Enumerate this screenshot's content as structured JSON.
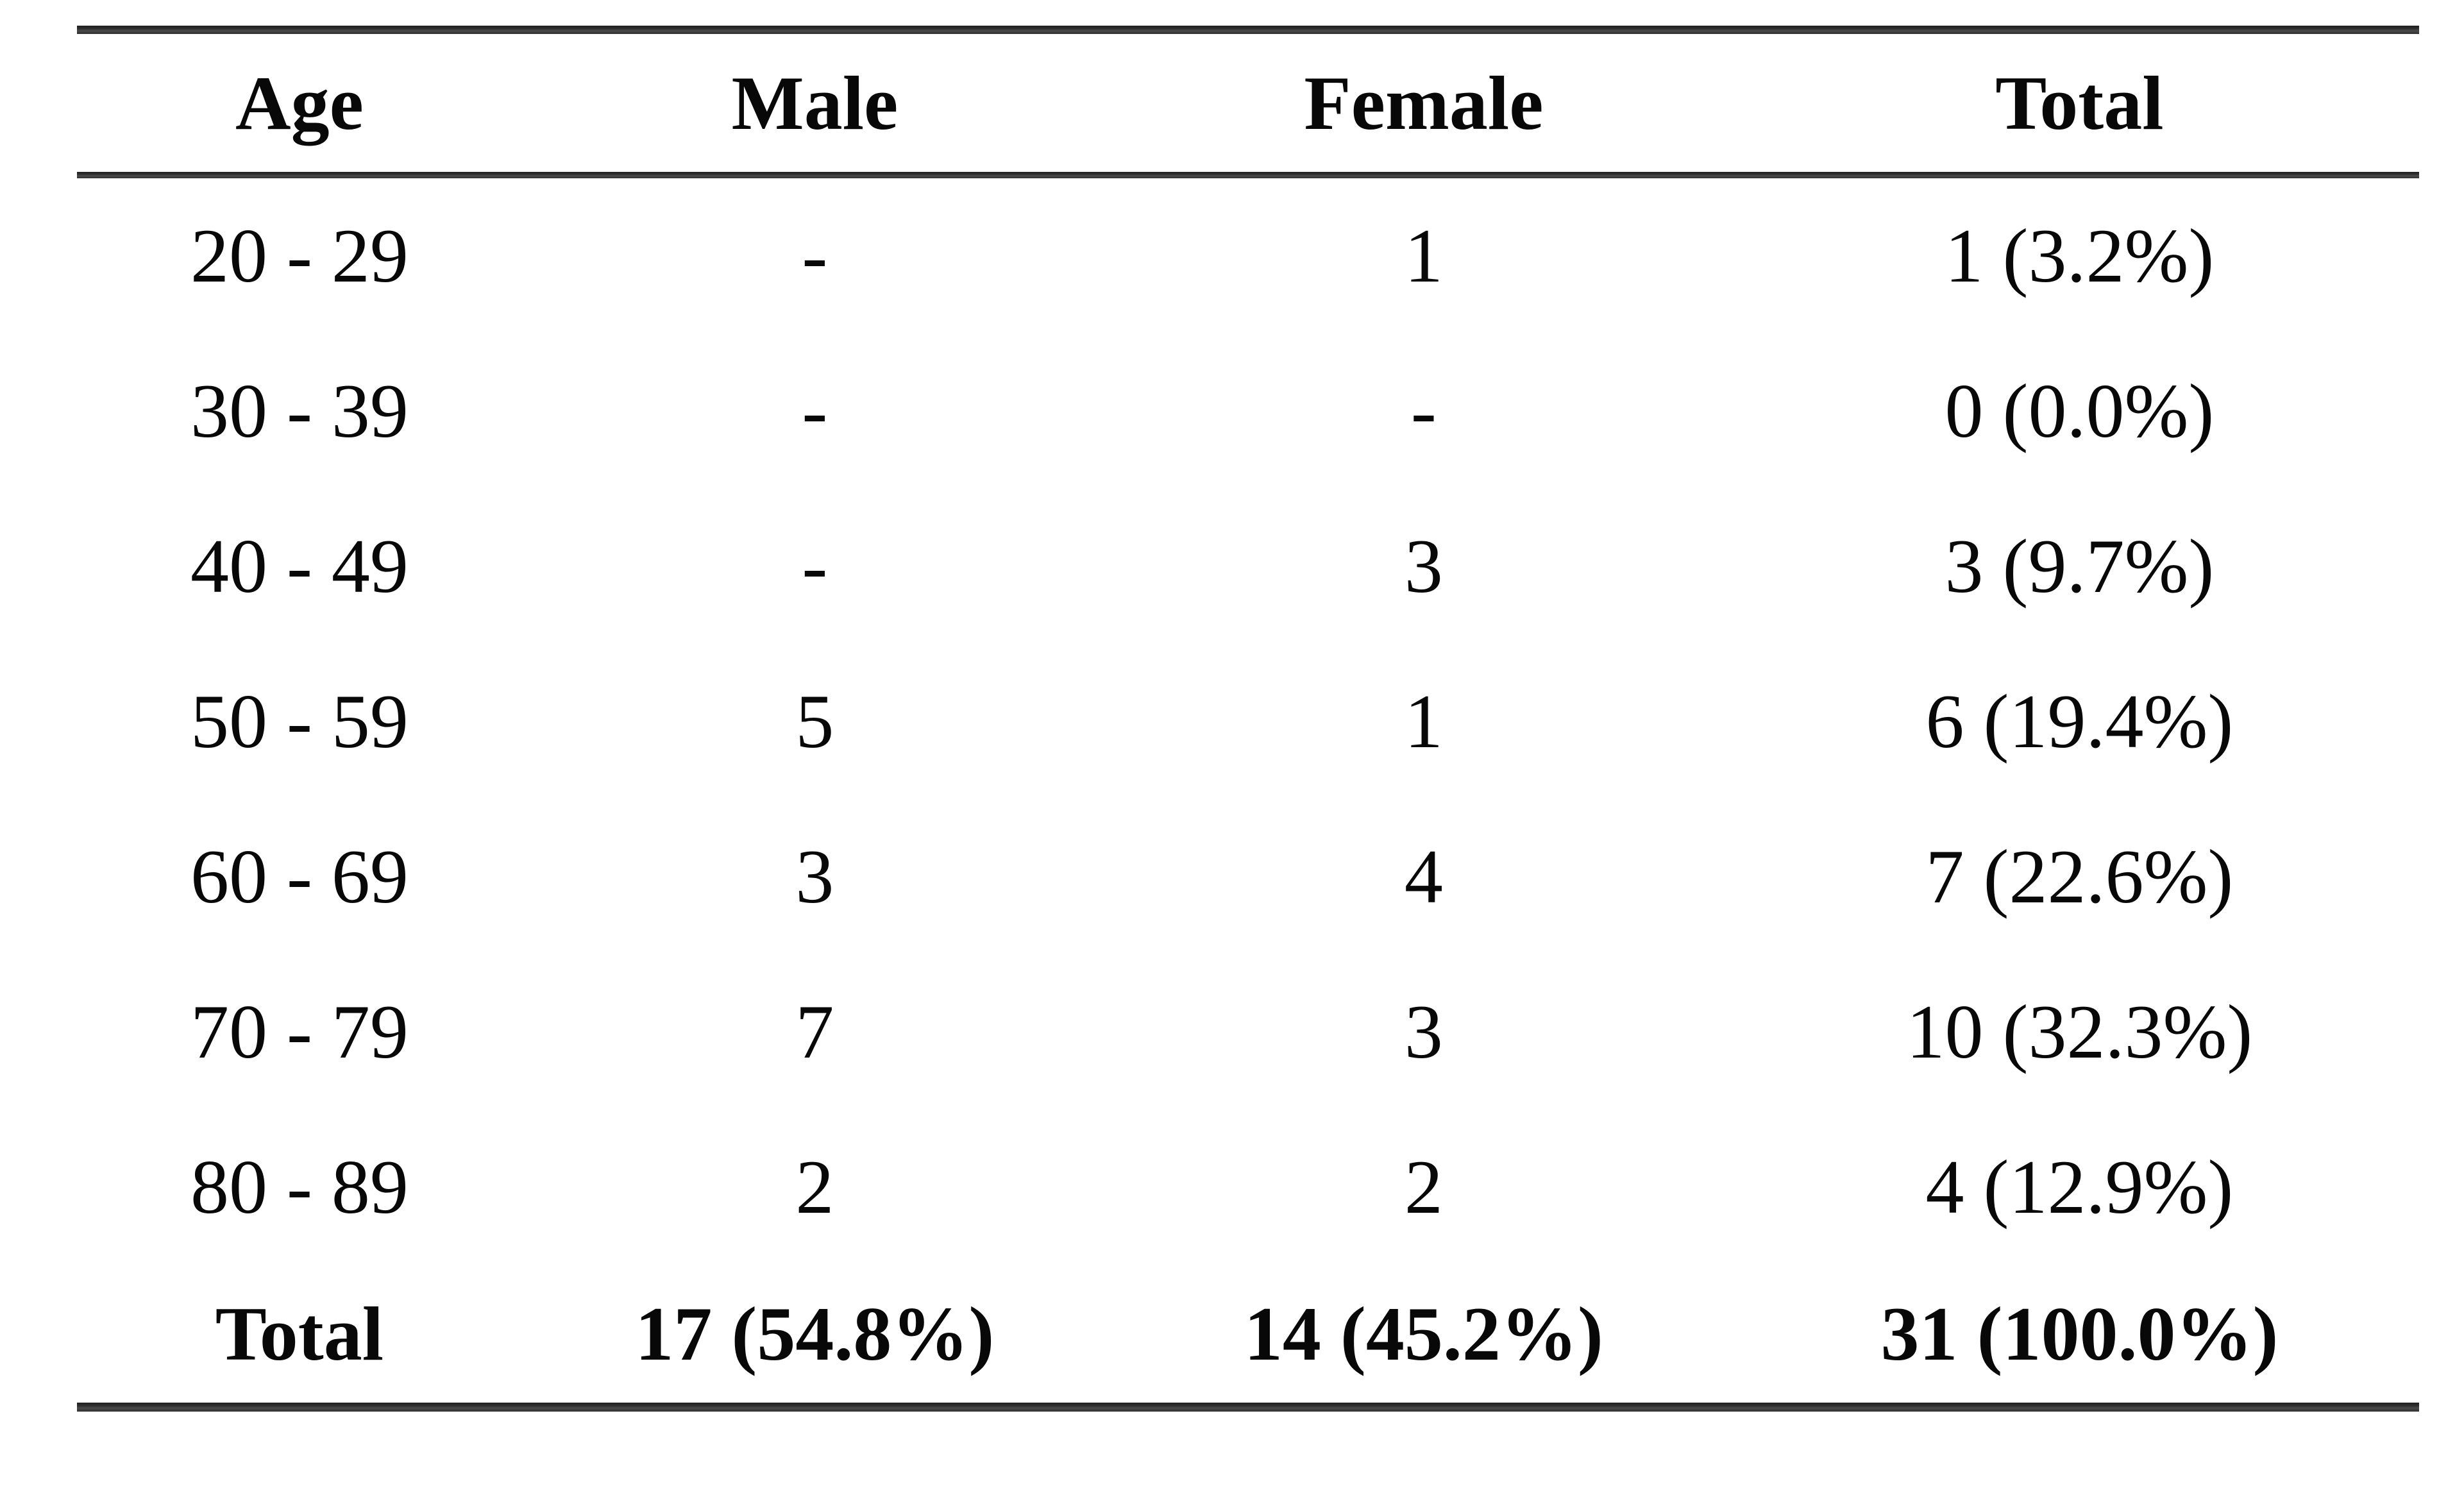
{
  "table": {
    "columns": [
      "Age",
      "Male",
      "Female",
      "Total"
    ],
    "rows": [
      [
        "20 - 29",
        "-",
        "1",
        "1 (3.2%)"
      ],
      [
        "30 - 39",
        "-",
        "-",
        "0 (0.0%)"
      ],
      [
        "40 - 49",
        "-",
        "3",
        "3 (9.7%)"
      ],
      [
        "50 - 59",
        "5",
        "1",
        "6 (19.4%)"
      ],
      [
        "60 - 69",
        "3",
        "4",
        "7 (22.6%)"
      ],
      [
        "70 - 79",
        "7",
        "3",
        "10 (32.3%)"
      ],
      [
        "80 - 89",
        "2",
        "2",
        "4 (12.9%)"
      ]
    ],
    "footer": [
      "Total",
      "17 (54.8%)",
      "14 (45.2%)",
      "31 (100.0%)"
    ]
  },
  "chart_data": {
    "type": "table",
    "title": "",
    "columns": [
      "Age",
      "Male",
      "Female",
      "Total"
    ],
    "categories": [
      "20 - 29",
      "30 - 39",
      "40 - 49",
      "50 - 59",
      "60 - 69",
      "70 - 79",
      "80 - 89"
    ],
    "series": [
      {
        "name": "Male",
        "values": [
          0,
          0,
          0,
          5,
          3,
          7,
          2
        ],
        "total": 17,
        "total_percent": 54.8
      },
      {
        "name": "Female",
        "values": [
          1,
          0,
          3,
          1,
          4,
          3,
          2
        ],
        "total": 14,
        "total_percent": 45.2
      }
    ],
    "row_totals": [
      1,
      0,
      3,
      6,
      7,
      10,
      4
    ],
    "row_total_percents": [
      3.2,
      0.0,
      9.7,
      19.4,
      22.6,
      32.3,
      12.9
    ],
    "grand_total": 31,
    "grand_total_percent": 100.0,
    "empty_cell_marker": "-"
  },
  "colors": {
    "background": "#ffffff",
    "text": "#080808",
    "rule": "#2e2e2e"
  }
}
